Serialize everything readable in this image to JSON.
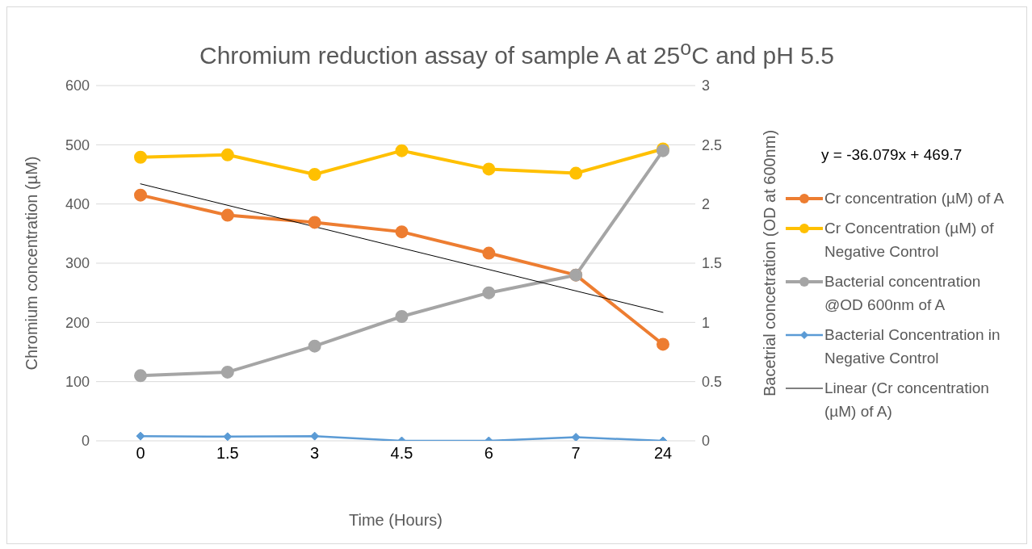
{
  "chart_data": {
    "type": "line",
    "title": "Chromium reduction assay of sample A at 25$^{o}$C and pH 5.5",
    "xlabel": "Time (Hours)",
    "ylabel": "Chromium concentration (µM)",
    "y2label": "Bacetrial concetration (OD at 600nm)",
    "annotations": [
      "y = -36.079x + 469.7"
    ],
    "categories": [
      "0",
      "1.5",
      "3",
      "4.5",
      "6",
      "7",
      "24"
    ],
    "series": [
      {
        "name": "Cr concentration (µM) of A",
        "color": "#ed7d31",
        "marker": "circle",
        "values": [
          415,
          381,
          369,
          353,
          317,
          280,
          163
        ]
      },
      {
        "name": "Cr Concentration (µM) of Negative Control",
        "color": "#ffc000",
        "marker": "circle",
        "values": [
          479,
          483,
          450,
          490,
          459,
          452,
          493
        ]
      },
      {
        "name": "Bacterial concentration @OD 600nm of A",
        "color": "#a5a5a5",
        "marker": "circle",
        "axis": "y2",
        "values": [
          0.55,
          0.58,
          0.8,
          1.05,
          1.25,
          1.4,
          2.45
        ]
      },
      {
        "name": "Bacterial Concentration in Negative Control",
        "color": "#5b9bd5",
        "marker": "diamond",
        "axis": "y2",
        "values": [
          0.04,
          0.035,
          0.04,
          0,
          0,
          0.03,
          0
        ]
      },
      {
        "name": "Linear (Cr concentration (µM) of A)",
        "color": "#000000",
        "marker": "none",
        "x": [
          "0",
          "24"
        ],
        "values": [
          434,
          217
        ]
      }
    ],
    "ylim": [
      0,
      600
    ],
    "yticks": [
      0,
      100,
      200,
      300,
      400,
      500,
      600
    ],
    "y2lim": [
      0,
      3
    ],
    "y2ticks": [
      0,
      0.5,
      1,
      1.5,
      2,
      2.5,
      3
    ],
    "grid": "y",
    "legend": "right"
  }
}
